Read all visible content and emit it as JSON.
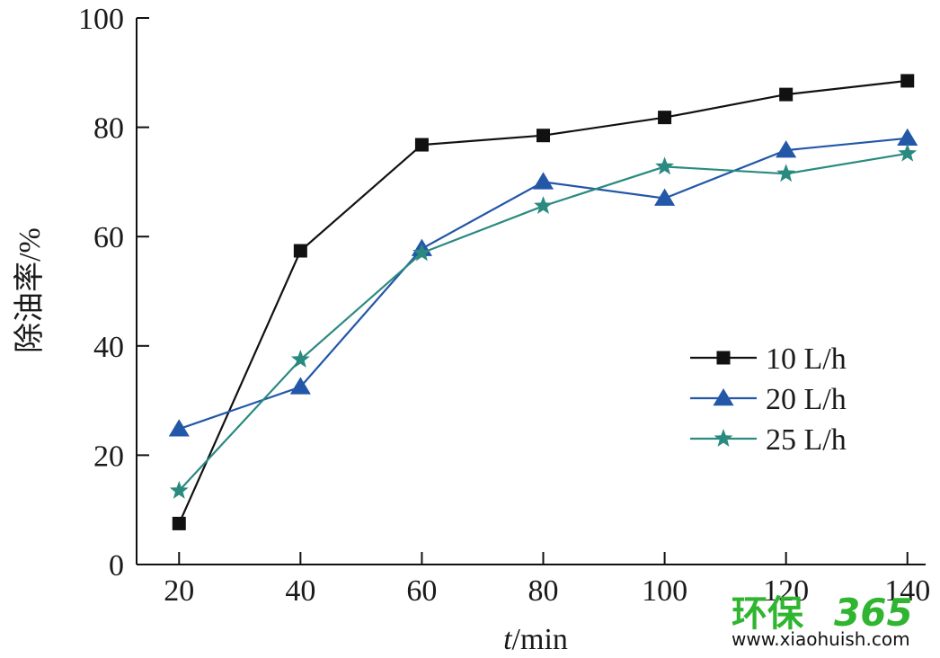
{
  "chart_data": {
    "type": "line",
    "xlabel_italic": "t",
    "xlabel_rest": "/min",
    "ylabel": "除油率/%",
    "x": [
      20,
      40,
      60,
      80,
      100,
      120,
      140
    ],
    "xlim": [
      13,
      143
    ],
    "ylim": [
      0,
      100
    ],
    "xticks": [
      "20",
      "40",
      "60",
      "80",
      "100",
      "120",
      "140"
    ],
    "yticks": [
      "0",
      "20",
      "40",
      "60",
      "80",
      "100"
    ],
    "grid": false,
    "legend_position": "right",
    "series": [
      {
        "name": "10 L/h",
        "values": [
          7.5,
          57.4,
          76.8,
          78.5,
          81.8,
          86.0,
          88.5
        ],
        "color": "#111111",
        "marker": "square"
      },
      {
        "name": "20 L/h",
        "values": [
          24.8,
          32.5,
          57.8,
          70.0,
          67.0,
          75.8,
          78.0
        ],
        "color": "#2357a8",
        "marker": "triangle"
      },
      {
        "name": "25 L/h",
        "values": [
          13.5,
          37.5,
          57.0,
          65.6,
          72.8,
          71.5,
          75.2
        ],
        "color": "#2a8a80",
        "marker": "star"
      }
    ]
  },
  "watermark": {
    "brand_cn": "环保",
    "brand_num": "365",
    "url": "www.xiaohuish.com"
  }
}
